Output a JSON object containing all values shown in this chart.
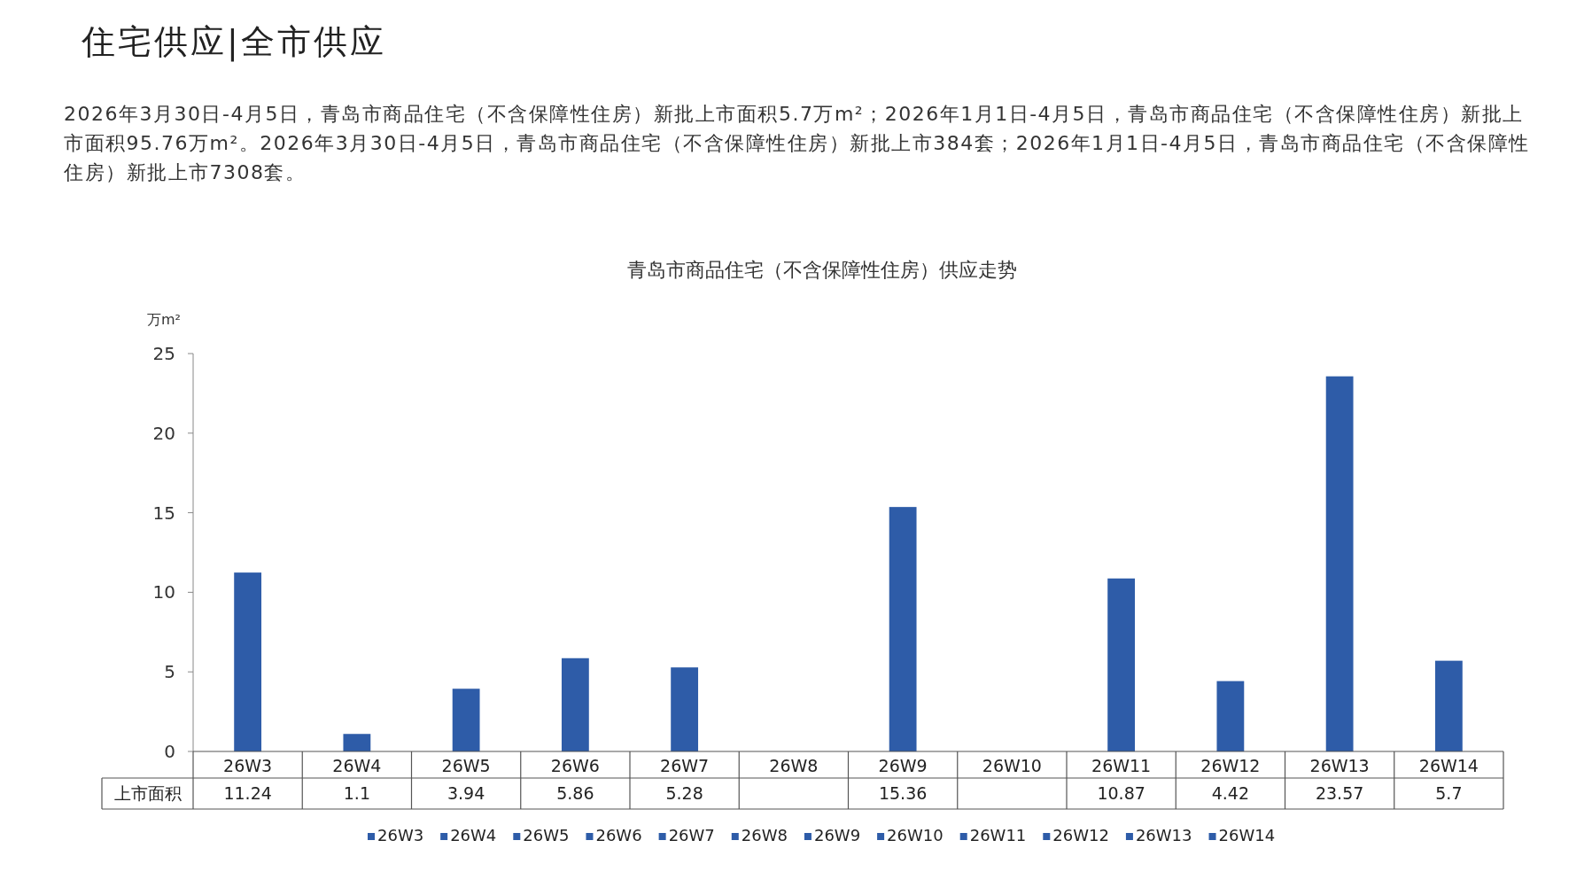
{
  "chart_data": {
    "type": "bar",
    "title": "青岛市商品住宅（不含保障性住房）供应走势",
    "annotations": [
      "住宅供应|全市供应",
      "2026年3月30日-4月5日，青岛市商品住宅（不含保障性住房）新批上市面积5.7万m²；2026年1月1日-4月5日，青岛市商品住宅（不含保障性住房）新批上市面积95.76万m²。2026年3月30日-4月5日，青岛市商品住宅（不含保障性住房）新批上市384套；2026年1月1日-4月5日，青岛市商品住宅（不含保障性住房）新批上市7308套。"
    ],
    "ylabel": "万m²",
    "categories": [
      "26W3",
      "26W4",
      "26W5",
      "26W6",
      "26W7",
      "26W8",
      "26W9",
      "26W10",
      "26W11",
      "26W12",
      "26W13",
      "26W14"
    ],
    "series": [
      {
        "name": "上市面积",
        "colors": [
          "#2e5ca8",
          "#2e5ca8",
          "#2e5ca8",
          "#2e5ca8",
          "#2e5ca8",
          "#2e5ca8",
          "#2e5ca8",
          "#2e5ca8",
          "#2e5ca8",
          "#2e5ca8",
          "#2e5ca8",
          "#2e5ca8"
        ],
        "values": [
          11.24,
          1.1,
          3.94,
          5.86,
          5.28,
          null,
          15.36,
          null,
          10.87,
          4.42,
          23.57,
          5.7
        ]
      }
    ],
    "ylim": [
      0,
      25
    ],
    "yticks": [
      0,
      5,
      10,
      15,
      20,
      25
    ],
    "data_labels": true,
    "legend": "bottom"
  }
}
